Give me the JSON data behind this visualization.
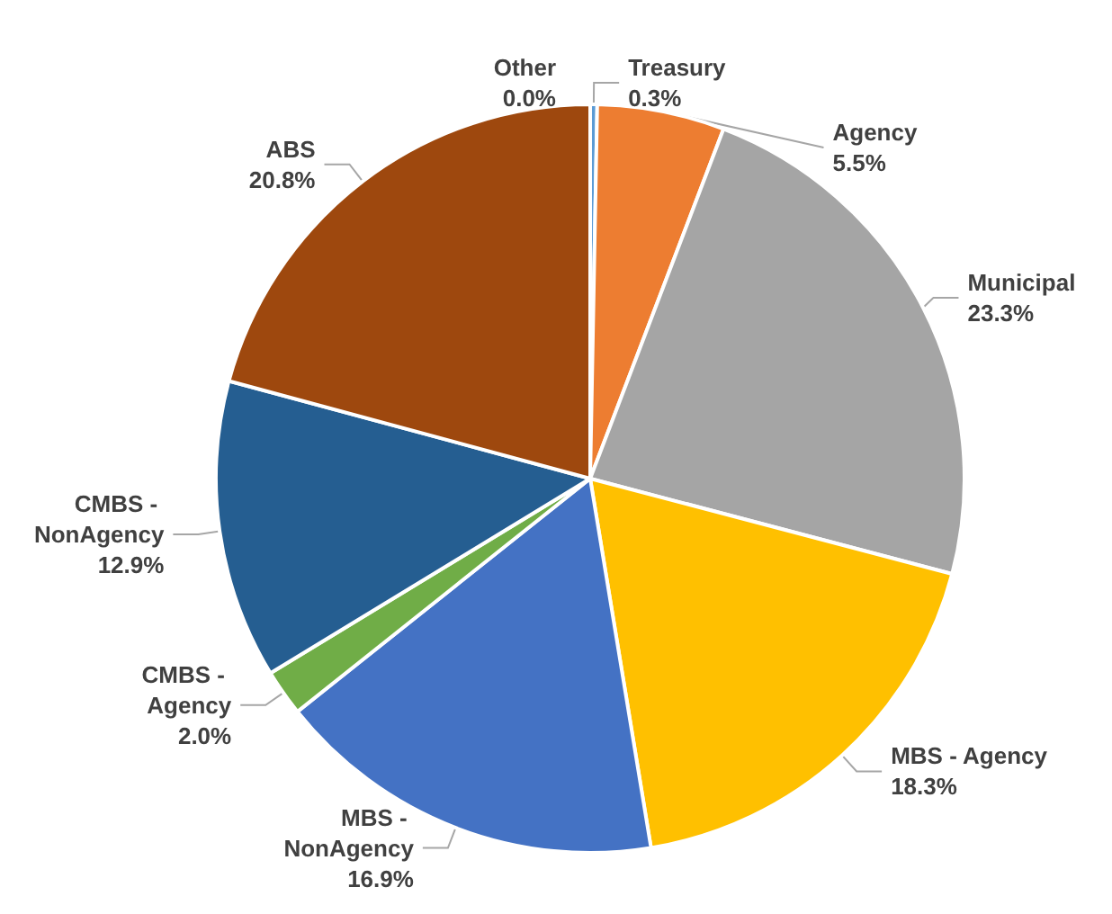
{
  "chart_data": {
    "type": "pie",
    "categories": [
      "Treasury",
      "Agency",
      "Municipal",
      "MBS - Agency",
      "MBS - NonAgency",
      "CMBS - Agency",
      "CMBS - NonAgency",
      "ABS",
      "Other"
    ],
    "values": [
      0.3,
      5.5,
      23.3,
      18.3,
      16.9,
      2.0,
      12.9,
      20.8,
      0.0
    ],
    "value_labels": [
      "0.3%",
      "5.5%",
      "23.3%",
      "18.3%",
      "16.9%",
      "2.0%",
      "12.9%",
      "20.8%",
      "0.0%"
    ],
    "colors": [
      "#5b9bd5",
      "#ed7d31",
      "#a5a5a5",
      "#ffc000",
      "#4472c4",
      "#70ad47",
      "#255e91",
      "#9e480e",
      "#636363"
    ],
    "legend": false
  }
}
